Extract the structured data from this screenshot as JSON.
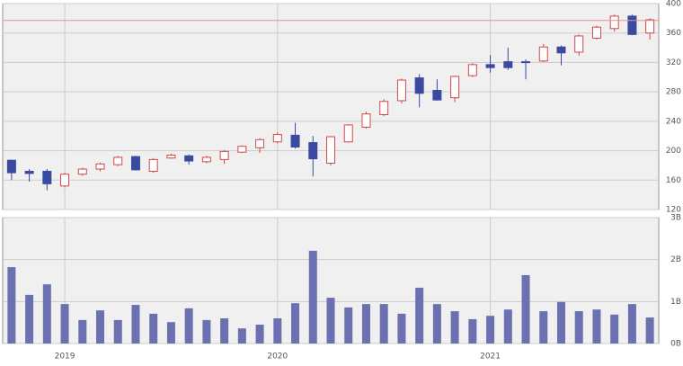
{
  "chart_data": [
    {
      "type": "candlestick",
      "open": [
        187,
        172,
        172,
        152,
        168,
        175,
        181,
        192,
        172,
        190,
        193,
        185,
        188,
        198,
        204,
        212,
        221,
        211,
        183,
        212,
        232,
        249,
        268,
        299,
        282,
        272,
        302,
        317,
        321,
        321,
        322,
        341,
        334,
        353,
        366,
        383,
        360
      ],
      "high": [
        188,
        175,
        175,
        170,
        177,
        184,
        193,
        193,
        190,
        196,
        195,
        193,
        201,
        207,
        217,
        225,
        238,
        220,
        220,
        236,
        253,
        270,
        298,
        304,
        297,
        302,
        319,
        330,
        340,
        324,
        345,
        343,
        358,
        370,
        385,
        385,
        380
      ],
      "low": [
        160,
        158,
        146,
        150,
        166,
        172,
        179,
        173,
        170,
        189,
        181,
        183,
        182,
        197,
        197,
        210,
        203,
        165,
        180,
        211,
        230,
        247,
        264,
        259,
        268,
        266,
        300,
        306,
        310,
        297,
        320,
        316,
        329,
        351,
        362,
        357,
        351
      ],
      "close": [
        170,
        169,
        155,
        168,
        175,
        182,
        191,
        174,
        188,
        194,
        186,
        191,
        199,
        206,
        215,
        222,
        205,
        189,
        219,
        235,
        250,
        267,
        296,
        278,
        269,
        301,
        317,
        313,
        313,
        320,
        341,
        333,
        356,
        368,
        383,
        358,
        378
      ],
      "up_color": "#d04848",
      "down_color": "#3a4aa0",
      "reference_line": {
        "value": 377,
        "color": "#e89090"
      },
      "ylim": [
        120,
        400
      ],
      "yticks": [
        120,
        160,
        200,
        240,
        280,
        320,
        360,
        400
      ],
      "grid": true
    },
    {
      "type": "bar",
      "categories": [
        null,
        null,
        null,
        "2019",
        null,
        null,
        null,
        null,
        null,
        null,
        null,
        null,
        null,
        null,
        null,
        "2020",
        null,
        null,
        null,
        null,
        null,
        null,
        null,
        null,
        null,
        null,
        null,
        "2021",
        null,
        null,
        null,
        null,
        null,
        null,
        null,
        null,
        null
      ],
      "values": [
        1.82,
        1.16,
        1.41,
        0.94,
        0.56,
        0.79,
        0.56,
        0.92,
        0.71,
        0.51,
        0.84,
        0.56,
        0.6,
        0.36,
        0.45,
        0.6,
        0.96,
        2.21,
        1.09,
        0.86,
        0.94,
        0.94,
        0.71,
        1.33,
        0.94,
        0.77,
        0.58,
        0.66,
        0.81,
        1.63,
        0.77,
        0.99,
        0.77,
        0.81,
        0.69,
        0.94,
        0.62
      ],
      "color": "#6b70b0",
      "ylim": [
        0,
        3
      ],
      "yticks": [
        {
          "value": 0,
          "label": "0B"
        },
        {
          "value": 1,
          "label": "1B"
        },
        {
          "value": 2,
          "label": "2B"
        },
        {
          "value": 3,
          "label": "3B"
        }
      ],
      "grid": true
    }
  ]
}
